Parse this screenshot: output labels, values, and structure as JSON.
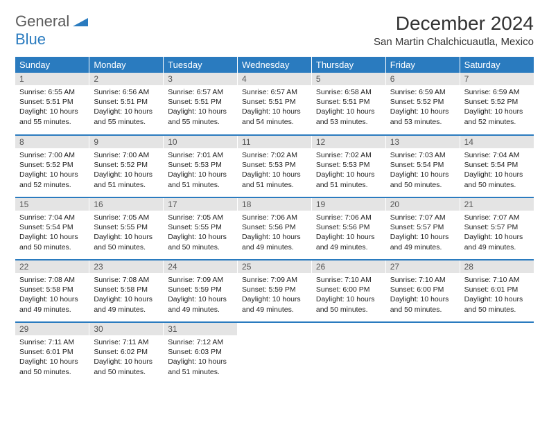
{
  "logo": {
    "general": "General",
    "blue": "Blue"
  },
  "title": "December 2024",
  "location": "San Martin Chalchicuautla, Mexico",
  "colors": {
    "header_bg": "#2a7bbf",
    "header_fg": "#ffffff",
    "daynum_bg": "#e4e4e4",
    "body_bg": "#ffffff",
    "rule": "#2a7bbf",
    "logo_gray": "#5a5a5a",
    "logo_blue": "#2a7bbf"
  },
  "day_headers": [
    "Sunday",
    "Monday",
    "Tuesday",
    "Wednesday",
    "Thursday",
    "Friday",
    "Saturday"
  ],
  "weeks": [
    [
      {
        "n": "1",
        "sr": "6:55 AM",
        "ss": "5:51 PM",
        "dl": "10 hours and 55 minutes."
      },
      {
        "n": "2",
        "sr": "6:56 AM",
        "ss": "5:51 PM",
        "dl": "10 hours and 55 minutes."
      },
      {
        "n": "3",
        "sr": "6:57 AM",
        "ss": "5:51 PM",
        "dl": "10 hours and 55 minutes."
      },
      {
        "n": "4",
        "sr": "6:57 AM",
        "ss": "5:51 PM",
        "dl": "10 hours and 54 minutes."
      },
      {
        "n": "5",
        "sr": "6:58 AM",
        "ss": "5:51 PM",
        "dl": "10 hours and 53 minutes."
      },
      {
        "n": "6",
        "sr": "6:59 AM",
        "ss": "5:52 PM",
        "dl": "10 hours and 53 minutes."
      },
      {
        "n": "7",
        "sr": "6:59 AM",
        "ss": "5:52 PM",
        "dl": "10 hours and 52 minutes."
      }
    ],
    [
      {
        "n": "8",
        "sr": "7:00 AM",
        "ss": "5:52 PM",
        "dl": "10 hours and 52 minutes."
      },
      {
        "n": "9",
        "sr": "7:00 AM",
        "ss": "5:52 PM",
        "dl": "10 hours and 51 minutes."
      },
      {
        "n": "10",
        "sr": "7:01 AM",
        "ss": "5:53 PM",
        "dl": "10 hours and 51 minutes."
      },
      {
        "n": "11",
        "sr": "7:02 AM",
        "ss": "5:53 PM",
        "dl": "10 hours and 51 minutes."
      },
      {
        "n": "12",
        "sr": "7:02 AM",
        "ss": "5:53 PM",
        "dl": "10 hours and 51 minutes."
      },
      {
        "n": "13",
        "sr": "7:03 AM",
        "ss": "5:54 PM",
        "dl": "10 hours and 50 minutes."
      },
      {
        "n": "14",
        "sr": "7:04 AM",
        "ss": "5:54 PM",
        "dl": "10 hours and 50 minutes."
      }
    ],
    [
      {
        "n": "15",
        "sr": "7:04 AM",
        "ss": "5:54 PM",
        "dl": "10 hours and 50 minutes."
      },
      {
        "n": "16",
        "sr": "7:05 AM",
        "ss": "5:55 PM",
        "dl": "10 hours and 50 minutes."
      },
      {
        "n": "17",
        "sr": "7:05 AM",
        "ss": "5:55 PM",
        "dl": "10 hours and 50 minutes."
      },
      {
        "n": "18",
        "sr": "7:06 AM",
        "ss": "5:56 PM",
        "dl": "10 hours and 49 minutes."
      },
      {
        "n": "19",
        "sr": "7:06 AM",
        "ss": "5:56 PM",
        "dl": "10 hours and 49 minutes."
      },
      {
        "n": "20",
        "sr": "7:07 AM",
        "ss": "5:57 PM",
        "dl": "10 hours and 49 minutes."
      },
      {
        "n": "21",
        "sr": "7:07 AM",
        "ss": "5:57 PM",
        "dl": "10 hours and 49 minutes."
      }
    ],
    [
      {
        "n": "22",
        "sr": "7:08 AM",
        "ss": "5:58 PM",
        "dl": "10 hours and 49 minutes."
      },
      {
        "n": "23",
        "sr": "7:08 AM",
        "ss": "5:58 PM",
        "dl": "10 hours and 49 minutes."
      },
      {
        "n": "24",
        "sr": "7:09 AM",
        "ss": "5:59 PM",
        "dl": "10 hours and 49 minutes."
      },
      {
        "n": "25",
        "sr": "7:09 AM",
        "ss": "5:59 PM",
        "dl": "10 hours and 49 minutes."
      },
      {
        "n": "26",
        "sr": "7:10 AM",
        "ss": "6:00 PM",
        "dl": "10 hours and 50 minutes."
      },
      {
        "n": "27",
        "sr": "7:10 AM",
        "ss": "6:00 PM",
        "dl": "10 hours and 50 minutes."
      },
      {
        "n": "28",
        "sr": "7:10 AM",
        "ss": "6:01 PM",
        "dl": "10 hours and 50 minutes."
      }
    ],
    [
      {
        "n": "29",
        "sr": "7:11 AM",
        "ss": "6:01 PM",
        "dl": "10 hours and 50 minutes."
      },
      {
        "n": "30",
        "sr": "7:11 AM",
        "ss": "6:02 PM",
        "dl": "10 hours and 50 minutes."
      },
      {
        "n": "31",
        "sr": "7:12 AM",
        "ss": "6:03 PM",
        "dl": "10 hours and 51 minutes."
      },
      null,
      null,
      null,
      null
    ]
  ],
  "labels": {
    "sunrise": "Sunrise:",
    "sunset": "Sunset:",
    "daylight": "Daylight:"
  }
}
